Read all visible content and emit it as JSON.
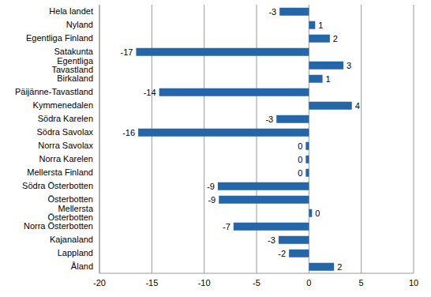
{
  "chart_data": {
    "type": "bar",
    "orientation": "horizontal",
    "categories": [
      "Hela landet",
      "Nyland",
      "Egentliga Finland",
      "Satakunta",
      "Egentliga Tavastland",
      "Birkaland",
      "Päijänne-Tavastland",
      "Kymmenedalen",
      "Södra Karelen",
      "Södra Savolax",
      "Norra Savolax",
      "Norra Karelen",
      "Mellersta Finland",
      "Södra Österbotten",
      "Österbotten",
      "Mellersta Österbotten",
      "Norra Österbotten",
      "Kajanaland",
      "Lappland",
      "Åland"
    ],
    "values": [
      -2.8,
      0.6,
      2.0,
      -16.5,
      3.3,
      1.3,
      -14.3,
      4.1,
      -3.1,
      -16.3,
      -0.3,
      -0.3,
      -0.3,
      -8.7,
      -8.6,
      0.3,
      -7.2,
      -2.9,
      -1.9,
      2.4
    ],
    "value_labels": [
      "-3",
      "1",
      "2",
      "-17",
      "3",
      "1",
      "-14",
      "4",
      "-3",
      "-16",
      "0",
      "0",
      "0",
      "-9",
      "-9",
      "0",
      "-7",
      "-3",
      "-2",
      "2"
    ],
    "color": "#2466a8",
    "xlim": [
      -20,
      10
    ],
    "xticks": [
      -20,
      -15,
      -10,
      -5,
      0,
      5,
      10
    ],
    "grid": true,
    "data_labels": true
  }
}
